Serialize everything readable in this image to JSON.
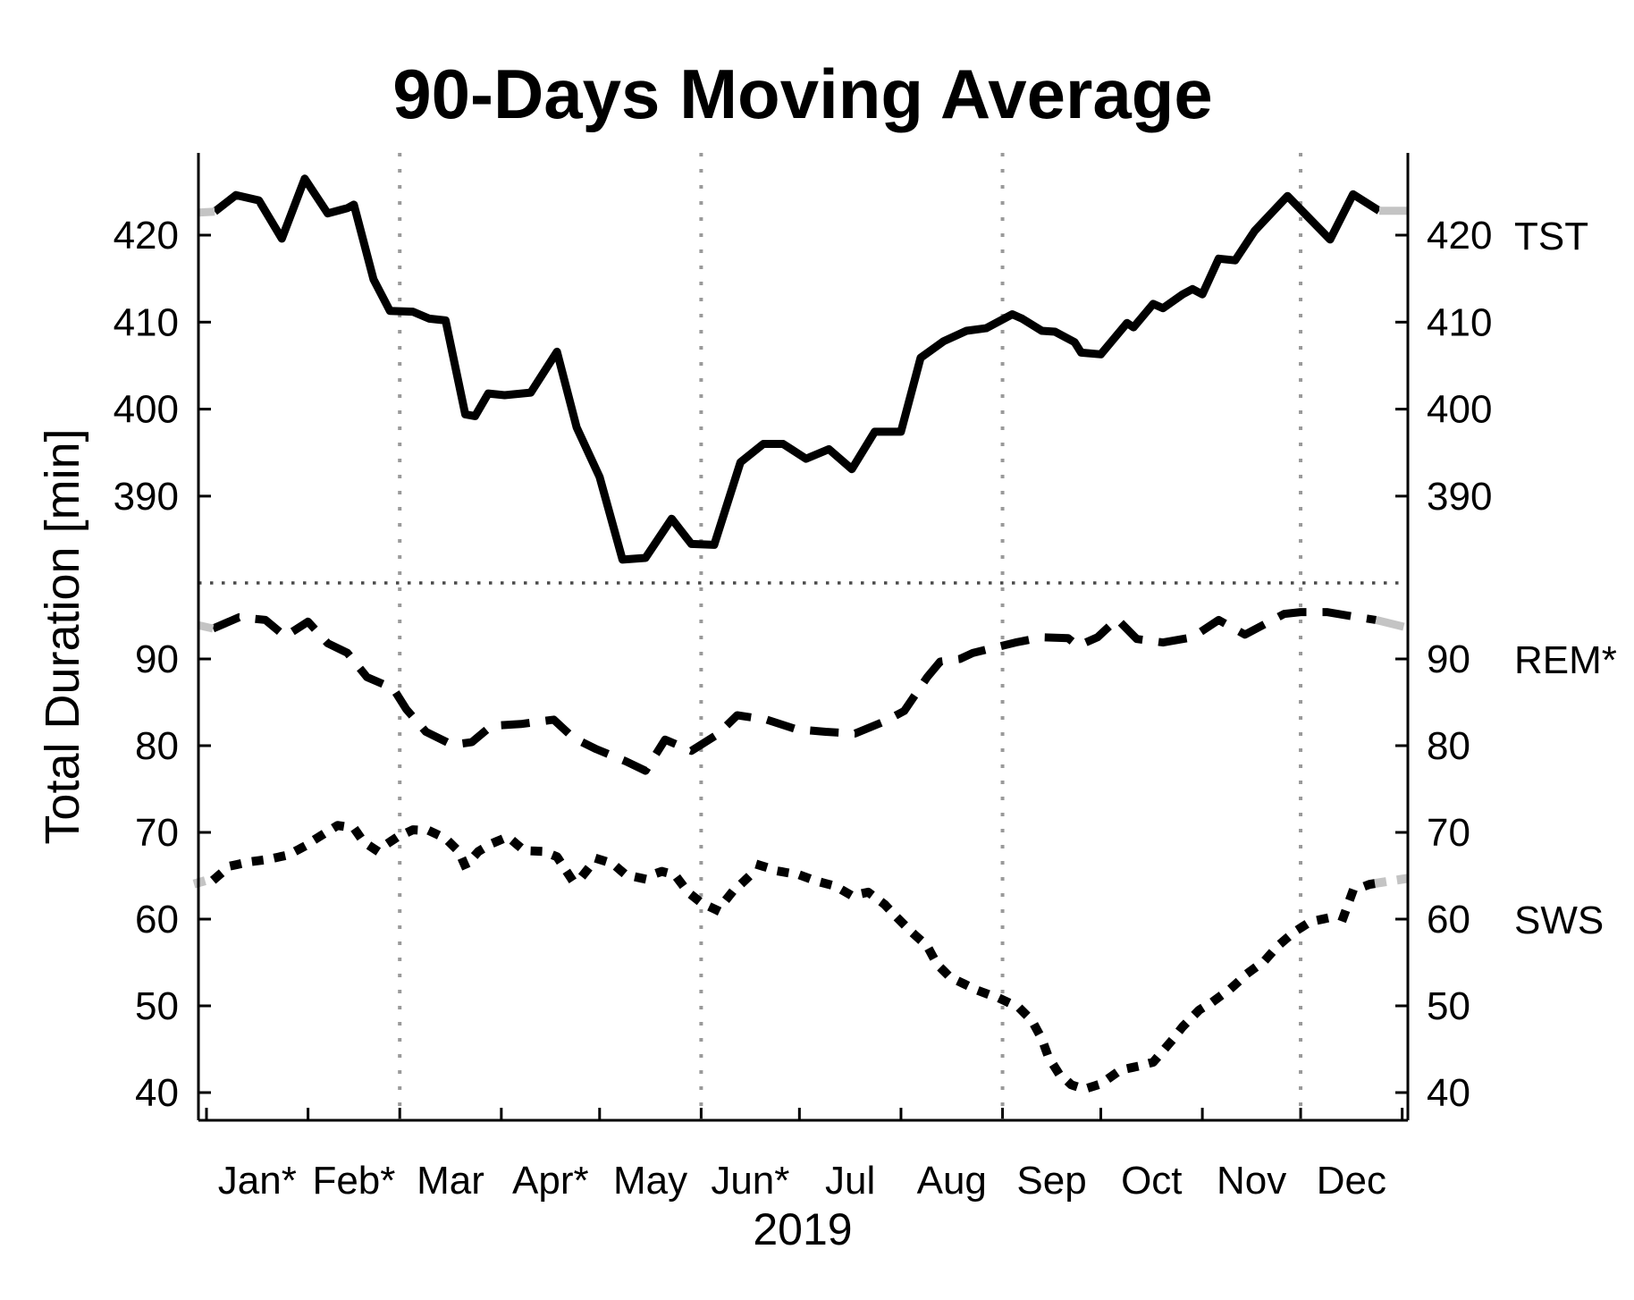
{
  "title": "90-Days Moving Average",
  "axes": {
    "y_label": "Total Duration [min]",
    "x_label": "2019",
    "top_ticks": [
      420,
      410,
      400,
      390
    ],
    "bottom_ticks": [
      90,
      80,
      70,
      60,
      50,
      40
    ],
    "months": [
      "Jan*",
      "Feb*",
      "Mar",
      "Apr*",
      "May",
      "Jun*",
      "Jul",
      "Aug",
      "Sep",
      "Oct",
      "Nov",
      "Dec"
    ],
    "month_days": [
      31,
      28,
      31,
      30,
      31,
      30,
      31,
      31,
      30,
      31,
      30,
      31
    ],
    "gridline_month_indices": [
      2,
      5,
      8,
      11
    ]
  },
  "colors": {
    "line": "#000000",
    "gray_segment": "#c4c4c4",
    "gridline": "#9a9a9a",
    "separator": "#4a4a4a",
    "axis": "#000000"
  },
  "chart_data": {
    "type": "line",
    "title": "90-Days Moving Average",
    "xlabel": "2019",
    "ylabel": "Total Duration [min]",
    "x_unit": "day-of-year 2019",
    "note": "broken y-axis: TST uses upper scale (390-420 ticks), REM*/SWS use lower scale (40-90 ticks); gray end-segments mark moving-average edge effects",
    "series": [
      {
        "name": "TST",
        "label": "TST",
        "style": "solid",
        "axis": "top",
        "label_value": 420,
        "gray_head_count": 2,
        "gray_tail_count": 2,
        "points": [
          [
            -1.5,
            422.6
          ],
          [
            3.5,
            422.7
          ],
          [
            10,
            424.6
          ],
          [
            17,
            424.0
          ],
          [
            24,
            419.6
          ],
          [
            31,
            426.5
          ],
          [
            38,
            422.5
          ],
          [
            44,
            423.1
          ],
          [
            46,
            423.5
          ],
          [
            52,
            414.9
          ],
          [
            57,
            411.3
          ],
          [
            64,
            411.2
          ],
          [
            69,
            410.4
          ],
          [
            74,
            410.2
          ],
          [
            80,
            399.4
          ],
          [
            83,
            399.2
          ],
          [
            87,
            401.8
          ],
          [
            92,
            401.6
          ],
          [
            100,
            401.9
          ],
          [
            108,
            406.6
          ],
          [
            114,
            397.9
          ],
          [
            121,
            392.2
          ],
          [
            128,
            382.7
          ],
          [
            135,
            382.9
          ],
          [
            143,
            387.4
          ],
          [
            149,
            384.5
          ],
          [
            156,
            384.4
          ],
          [
            164,
            393.9
          ],
          [
            171,
            396.0
          ],
          [
            177,
            396.0
          ],
          [
            184,
            394.3
          ],
          [
            191,
            395.4
          ],
          [
            198,
            393.1
          ],
          [
            205,
            397.4
          ],
          [
            213,
            397.4
          ],
          [
            219,
            405.9
          ],
          [
            226,
            407.8
          ],
          [
            233,
            409.0
          ],
          [
            239,
            409.3
          ],
          [
            247,
            410.9
          ],
          [
            250,
            410.4
          ],
          [
            256,
            409.0
          ],
          [
            260,
            408.9
          ],
          [
            266,
            407.7
          ],
          [
            268,
            406.5
          ],
          [
            274,
            406.3
          ],
          [
            282,
            409.9
          ],
          [
            284,
            409.4
          ],
          [
            290,
            412.1
          ],
          [
            293,
            411.6
          ],
          [
            299,
            413.2
          ],
          [
            302,
            413.8
          ],
          [
            305,
            413.2
          ],
          [
            310,
            417.3
          ],
          [
            315,
            417.1
          ],
          [
            321,
            420.5
          ],
          [
            331,
            424.5
          ],
          [
            344,
            419.5
          ],
          [
            351,
            424.7
          ],
          [
            359,
            422.8
          ],
          [
            367.7,
            422.8
          ]
        ]
      },
      {
        "name": "REM",
        "label": "REM*",
        "style": "dashed",
        "axis": "bottom",
        "label_value": 90,
        "gray_head_count": 2,
        "gray_tail_count": 2,
        "points": [
          [
            -1.5,
            93.9
          ],
          [
            3,
            93.5
          ],
          [
            11,
            94.8
          ],
          [
            19,
            94.5
          ],
          [
            25,
            92.6
          ],
          [
            32,
            94.3
          ],
          [
            38,
            91.8
          ],
          [
            44,
            90.7
          ],
          [
            50,
            87.9
          ],
          [
            58,
            86.6
          ],
          [
            62,
            84.2
          ],
          [
            68,
            81.6
          ],
          [
            76,
            80.1
          ],
          [
            82,
            80.4
          ],
          [
            88,
            82.3
          ],
          [
            97,
            82.5
          ],
          [
            107,
            83.0
          ],
          [
            113,
            80.9
          ],
          [
            120,
            79.6
          ],
          [
            129,
            78.2
          ],
          [
            135,
            77.1
          ],
          [
            141,
            80.7
          ],
          [
            149,
            79.4
          ],
          [
            157,
            81.3
          ],
          [
            163,
            83.5
          ],
          [
            172,
            83.0
          ],
          [
            181,
            81.9
          ],
          [
            190,
            81.6
          ],
          [
            199,
            81.4
          ],
          [
            208,
            82.8
          ],
          [
            214,
            84.0
          ],
          [
            221,
            87.9
          ],
          [
            225,
            89.7
          ],
          [
            231,
            90.0
          ],
          [
            235,
            90.7
          ],
          [
            248,
            91.9
          ],
          [
            256,
            92.5
          ],
          [
            264,
            92.4
          ],
          [
            267,
            91.5
          ],
          [
            273,
            92.5
          ],
          [
            279,
            94.6
          ],
          [
            285,
            92.3
          ],
          [
            293,
            91.9
          ],
          [
            302,
            92.5
          ],
          [
            310,
            94.5
          ],
          [
            318,
            92.8
          ],
          [
            330,
            95.2
          ],
          [
            335,
            95.4
          ],
          [
            343,
            95.4
          ],
          [
            351,
            94.9
          ],
          [
            358,
            94.5
          ],
          [
            367.7,
            93.6
          ]
        ]
      },
      {
        "name": "SWS",
        "label": "SWS",
        "style": "dotted",
        "axis": "bottom",
        "label_value": 60,
        "gray_head_count": 2,
        "gray_tail_count": 2,
        "points": [
          [
            -1.5,
            64.2
          ],
          [
            4,
            64.8
          ],
          [
            8,
            66.1
          ],
          [
            14,
            66.6
          ],
          [
            20,
            66.9
          ],
          [
            26,
            67.4
          ],
          [
            31,
            68.4
          ],
          [
            35,
            69.4
          ],
          [
            41,
            70.8
          ],
          [
            46,
            70.5
          ],
          [
            49,
            68.9
          ],
          [
            53,
            67.9
          ],
          [
            59,
            69.4
          ],
          [
            64,
            70.3
          ],
          [
            69,
            70.2
          ],
          [
            74,
            69.3
          ],
          [
            78,
            67.8
          ],
          [
            80,
            66.1
          ],
          [
            84,
            67.8
          ],
          [
            88,
            68.7
          ],
          [
            93,
            69.5
          ],
          [
            98,
            67.9
          ],
          [
            104,
            67.8
          ],
          [
            108,
            67.2
          ],
          [
            113,
            64.3
          ],
          [
            116,
            65.1
          ],
          [
            120,
            67.0
          ],
          [
            125,
            66.4
          ],
          [
            129,
            65.1
          ],
          [
            134,
            64.7
          ],
          [
            140,
            65.5
          ],
          [
            144,
            65.1
          ],
          [
            148,
            63.1
          ],
          [
            152,
            61.9
          ],
          [
            157,
            61.0
          ],
          [
            161,
            62.9
          ],
          [
            166,
            64.7
          ],
          [
            170,
            66.2
          ],
          [
            176,
            65.5
          ],
          [
            182,
            65.1
          ],
          [
            187,
            64.4
          ],
          [
            193,
            63.8
          ],
          [
            198,
            62.7
          ],
          [
            203,
            63.1
          ],
          [
            208,
            61.7
          ],
          [
            212,
            60.1
          ],
          [
            216,
            58.6
          ],
          [
            221,
            56.9
          ],
          [
            224,
            54.8
          ],
          [
            228,
            53.3
          ],
          [
            233,
            52.4
          ],
          [
            237,
            51.7
          ],
          [
            244,
            50.7
          ],
          [
            249,
            49.8
          ],
          [
            253,
            48.3
          ],
          [
            256,
            46.2
          ],
          [
            258,
            44.1
          ],
          [
            261,
            42.3
          ],
          [
            265,
            40.9
          ],
          [
            269,
            40.4
          ],
          [
            274,
            41.0
          ],
          [
            280,
            42.6
          ],
          [
            285,
            43.0
          ],
          [
            290,
            43.5
          ],
          [
            295,
            45.7
          ],
          [
            299,
            47.6
          ],
          [
            304,
            49.5
          ],
          [
            309,
            50.7
          ],
          [
            314,
            52.1
          ],
          [
            319,
            53.8
          ],
          [
            324,
            55.2
          ],
          [
            328,
            56.9
          ],
          [
            333,
            58.5
          ],
          [
            338,
            59.7
          ],
          [
            343,
            60.1
          ],
          [
            348,
            60.2
          ],
          [
            351,
            63.3
          ],
          [
            356,
            64.0
          ],
          [
            359,
            64.2
          ],
          [
            367.7,
            64.7
          ]
        ]
      }
    ],
    "y_top_axis": {
      "ticks": [
        420,
        410,
        400,
        390
      ],
      "applies_to": [
        "TST"
      ]
    },
    "y_bottom_axis": {
      "ticks": [
        90,
        80,
        70,
        60,
        50,
        40
      ],
      "applies_to": [
        "REM*",
        "SWS"
      ]
    },
    "x_ticks": "first day of each month, Jan-Dec 2019",
    "grid": "dotted vertical lines at Mar 1, Jun 1, Sep 1, Dec 1; dotted horizontal separator between the two y-scales",
    "legend_position": "series labels at right axis (TST, REM*, SWS)"
  }
}
